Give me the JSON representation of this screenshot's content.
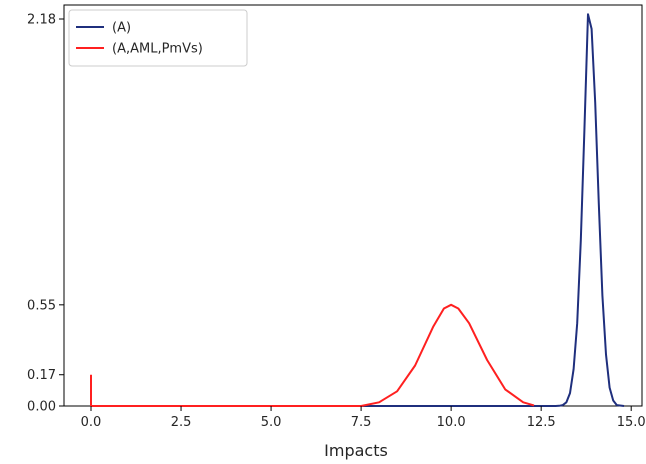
{
  "chart_data": {
    "type": "line",
    "xlabel": "Impacts",
    "ylabel": "",
    "xlim": [
      -0.75,
      15.3
    ],
    "ylim": [
      0,
      2.18
    ],
    "xticks": [
      0.0,
      2.5,
      5.0,
      7.5,
      10.0,
      12.5,
      15.0
    ],
    "xtick_labels": [
      "0.0",
      "2.5",
      "5.0",
      "7.5",
      "10.0",
      "12.5",
      "15.0"
    ],
    "yticks": [
      0.0,
      0.17,
      0.55,
      2.18
    ],
    "ytick_labels": [
      "0.00",
      "0.17",
      "0.55",
      "2.18"
    ],
    "legend_position": "upper-left",
    "series": [
      {
        "name": "(A)",
        "color": "#1f2f7d",
        "x": [
          0.0,
          12.6,
          12.9,
          13.0,
          13.1,
          13.2,
          13.3,
          13.4,
          13.5,
          13.6,
          13.7,
          13.8,
          13.9,
          14.0,
          14.1,
          14.2,
          14.3,
          14.4,
          14.5,
          14.6,
          14.8
        ],
        "y": [
          0.0,
          0.0,
          0.0,
          0.001,
          0.005,
          0.02,
          0.07,
          0.2,
          0.45,
          0.9,
          1.5,
          2.13,
          2.05,
          1.65,
          1.1,
          0.6,
          0.28,
          0.1,
          0.03,
          0.005,
          0.0
        ]
      },
      {
        "name": "(A,AML,PmVs)",
        "color": "#ff2020",
        "x": [
          0.0,
          0.0,
          0.0,
          7.5,
          8.0,
          8.5,
          9.0,
          9.5,
          9.8,
          10.0,
          10.2,
          10.5,
          11.0,
          11.5,
          12.0,
          12.3
        ],
        "y": [
          0.17,
          0.0,
          0.0,
          0.0,
          0.02,
          0.08,
          0.22,
          0.43,
          0.53,
          0.55,
          0.53,
          0.45,
          0.25,
          0.09,
          0.02,
          0.003
        ]
      }
    ]
  }
}
